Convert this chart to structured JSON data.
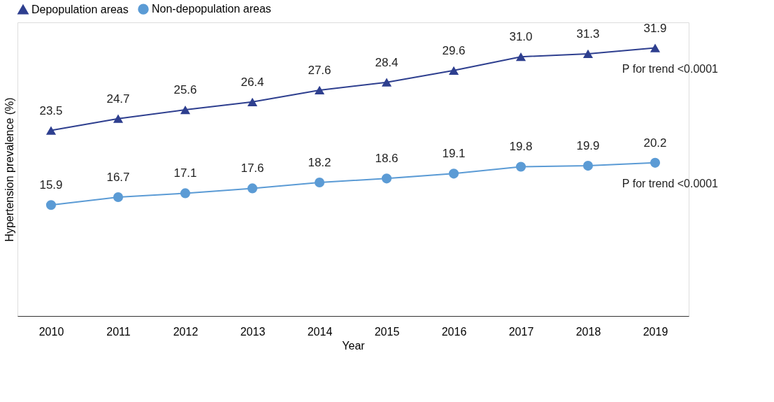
{
  "chart_data": {
    "type": "line",
    "xlabel": "Year",
    "ylabel": "Hypertension prevalence (%)",
    "categories": [
      "2010",
      "2011",
      "2012",
      "2013",
      "2014",
      "2015",
      "2016",
      "2017",
      "2018",
      "2019"
    ],
    "series": [
      {
        "name": "Depopulation areas",
        "color": "#2e3f8f",
        "marker": "triangle",
        "values": [
          23.5,
          24.7,
          25.6,
          26.4,
          27.6,
          28.4,
          29.6,
          31.0,
          31.3,
          31.9
        ],
        "value_labels": [
          "23.5",
          "24.7",
          "25.6",
          "26.4",
          "27.6",
          "28.4",
          "29.6",
          "31.0",
          "31.3",
          "31.9"
        ]
      },
      {
        "name": "Non-depopulation areas",
        "color": "#5b9bd5",
        "marker": "circle",
        "values": [
          15.9,
          16.7,
          17.1,
          17.6,
          18.2,
          18.6,
          19.1,
          19.8,
          19.9,
          20.2
        ],
        "value_labels": [
          "15.9",
          "16.7",
          "17.1",
          "17.6",
          "18.2",
          "18.6",
          "19.1",
          "19.8",
          "19.9",
          "20.2"
        ]
      }
    ],
    "ylim": [
      4.6,
      34.5
    ],
    "legend": "top left",
    "grid": false,
    "line_style": "solid",
    "annotations": [
      {
        "text": "P for trend <0.0001",
        "x": "2019",
        "y": 31.9
      },
      {
        "text": "P for trend <0.0001",
        "x": "2019",
        "y": 20.2
      }
    ]
  }
}
